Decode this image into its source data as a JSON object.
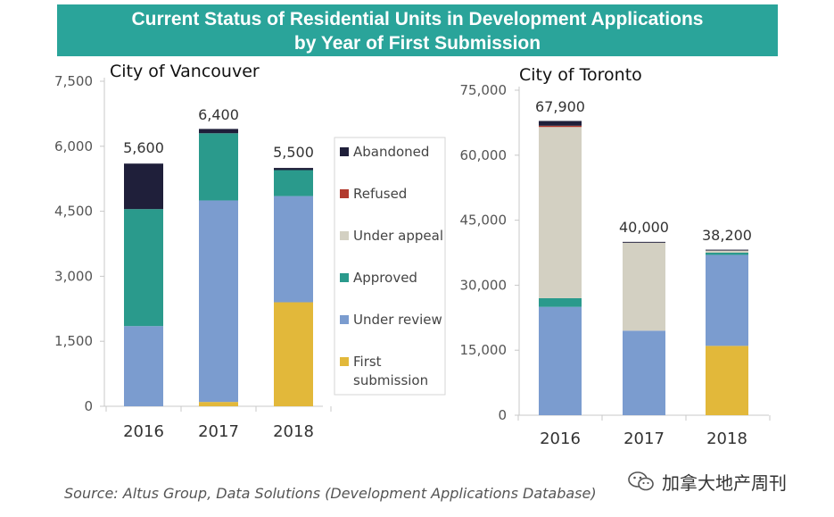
{
  "header": {
    "title_line1": "Current Status of Residential Units in Development Applications",
    "title_line2": "by Year of First Submission",
    "banner_color": "#2aa49a"
  },
  "legend": {
    "items": [
      {
        "label": "Abandoned",
        "color": "#1f1f3a"
      },
      {
        "label": "Refused",
        "color": "#b23a2e"
      },
      {
        "label": "Under appeal",
        "color": "#d3d0c2"
      },
      {
        "label": "Approved",
        "color": "#2a9a8c"
      },
      {
        "label": "Under review",
        "color": "#7b9ccf"
      },
      {
        "label": "First submission",
        "color": "#e2b83a"
      }
    ]
  },
  "chart_data": [
    {
      "type": "bar",
      "stacked": true,
      "title": "City of Vancouver",
      "categories": [
        "2016",
        "2017",
        "2018"
      ],
      "ylim": [
        0,
        7500
      ],
      "yticks": [
        "0",
        "1,500",
        "3,000",
        "4,500",
        "6,000",
        "7,500"
      ],
      "ytick_values": [
        0,
        1500,
        3000,
        4500,
        6000,
        7500
      ],
      "totals": [
        "5,600",
        "6,400",
        "5,500"
      ],
      "series": [
        {
          "name": "First submission",
          "values": [
            0,
            100,
            2400
          ]
        },
        {
          "name": "Under review",
          "values": [
            1850,
            4650,
            2450
          ]
        },
        {
          "name": "Approved",
          "values": [
            2700,
            1550,
            600
          ]
        },
        {
          "name": "Under appeal",
          "values": [
            0,
            0,
            0
          ]
        },
        {
          "name": "Refused",
          "values": [
            0,
            0,
            0
          ]
        },
        {
          "name": "Abandoned",
          "values": [
            1050,
            100,
            50
          ]
        }
      ]
    },
    {
      "type": "bar",
      "stacked": true,
      "title": "City of Toronto",
      "categories": [
        "2016",
        "2017",
        "2018"
      ],
      "ylim": [
        0,
        75000
      ],
      "yticks": [
        "0",
        "15,000",
        "30,000",
        "45,000",
        "60,000",
        "75,000"
      ],
      "ytick_values": [
        0,
        15000,
        30000,
        45000,
        60000,
        75000
      ],
      "totals": [
        "67,900",
        "40,000",
        "38,200"
      ],
      "series": [
        {
          "name": "First submission",
          "values": [
            0,
            0,
            16000
          ]
        },
        {
          "name": "Under review",
          "values": [
            25000,
            19500,
            21000
          ]
        },
        {
          "name": "Approved",
          "values": [
            2000,
            0,
            500
          ]
        },
        {
          "name": "Under appeal",
          "values": [
            39500,
            20300,
            500
          ]
        },
        {
          "name": "Refused",
          "values": [
            300,
            0,
            0
          ]
        },
        {
          "name": "Abandoned",
          "values": [
            1100,
            200,
            200
          ]
        }
      ]
    }
  ],
  "footer": {
    "source": "Source: Altus Group, Data Solutions (Development Applications Database)",
    "brand": "加拿大地产周刊"
  }
}
